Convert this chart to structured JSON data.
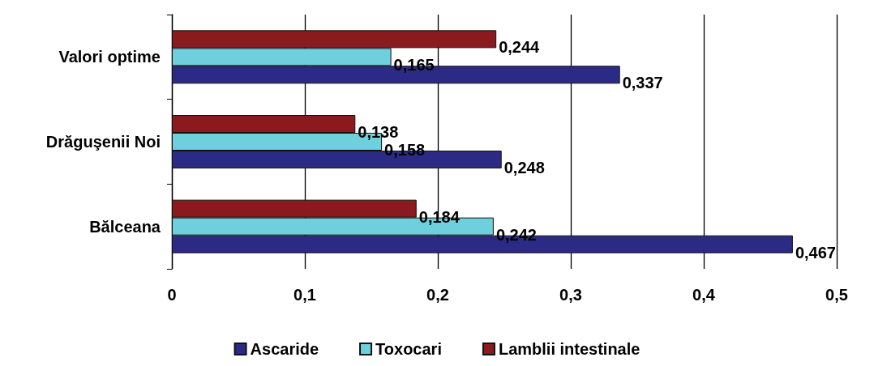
{
  "chart_data": {
    "type": "bar",
    "orientation": "horizontal",
    "categories": [
      "Valori optime",
      "Drăguşenii Noi",
      "Bălceana"
    ],
    "series": [
      {
        "name": "Ascaride",
        "color": "#2b2b86",
        "values": [
          0.337,
          0.248,
          0.467
        ],
        "value_labels": [
          "0,337",
          "0,248",
          "0,467"
        ]
      },
      {
        "name": "Toxocari",
        "color": "#6dd0dc",
        "values": [
          0.165,
          0.158,
          0.242
        ],
        "value_labels": [
          "0,165",
          "0,158",
          "0,242"
        ]
      },
      {
        "name": "Lamblii intestinale",
        "color": "#8b1a1f",
        "values": [
          0.244,
          0.138,
          0.184
        ],
        "value_labels": [
          "0,244",
          "0,138",
          "0,184"
        ]
      }
    ],
    "xlim": [
      0,
      0.5
    ],
    "xticks": [
      0,
      {
        "value": 0.1,
        "label": "0,1"
      },
      {
        "value": 0.2,
        "label": "0,2"
      },
      {
        "value": 0.3,
        "label": "0,3"
      },
      {
        "value": 0.4,
        "label": "0,4"
      },
      {
        "value": 0.5,
        "label": "0,5"
      }
    ],
    "grid": "x",
    "legend": "bottom"
  }
}
